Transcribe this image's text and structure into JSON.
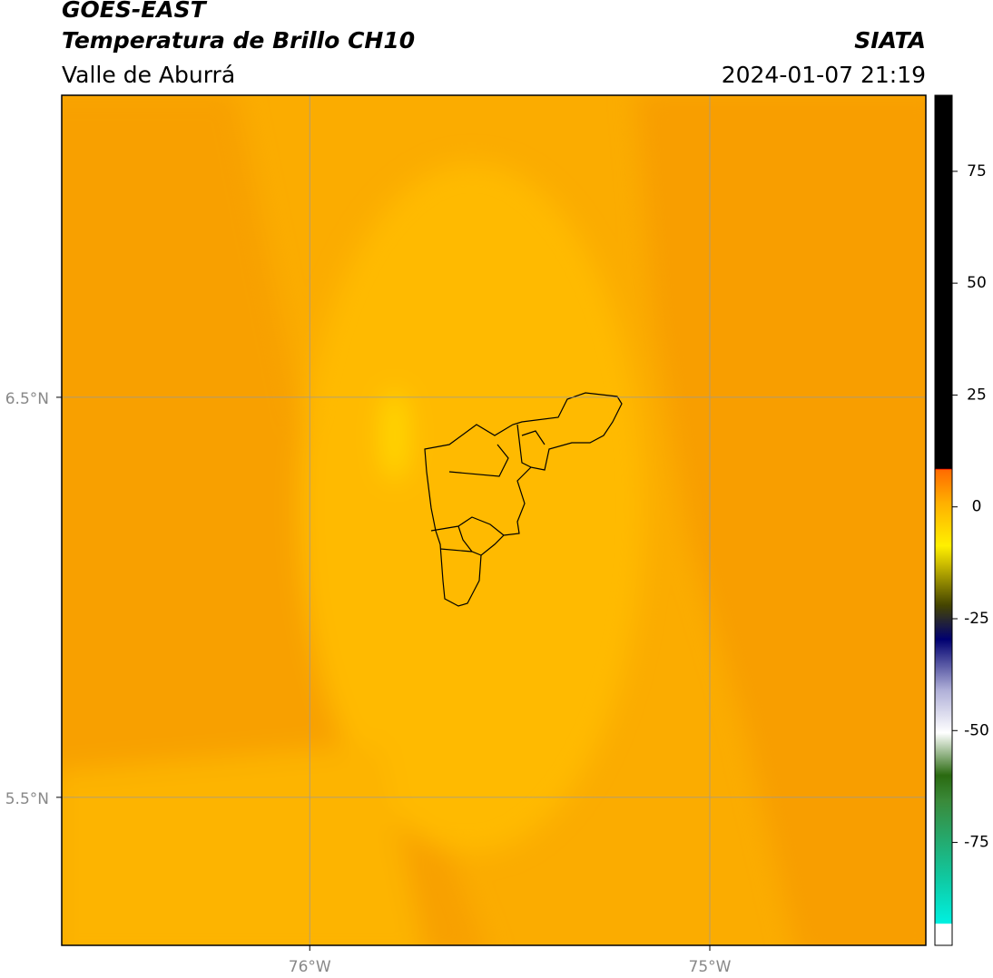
{
  "header": {
    "title": "GOES-EAST",
    "subtitle": "Temperatura de Brillo CH10",
    "region": "Valle de Aburrá",
    "source": "SIATA",
    "datetime": "2024-01-07 21:19"
  },
  "map": {
    "lon_range": [
      -76.62,
      -74.46
    ],
    "lat_range": [
      5.13,
      7.255
    ],
    "lat_ticks": [
      {
        "value": 6.5,
        "label": "6.5°N"
      },
      {
        "value": 5.5,
        "label": "5.5°N"
      }
    ],
    "lon_ticks": [
      {
        "value": -76,
        "label": "76°W"
      },
      {
        "value": -75,
        "label": "75°W"
      }
    ]
  },
  "colorbar": {
    "range": [
      -98,
      92
    ],
    "ticks": [
      75,
      50,
      25,
      0,
      -25,
      -50,
      -75
    ]
  }
}
